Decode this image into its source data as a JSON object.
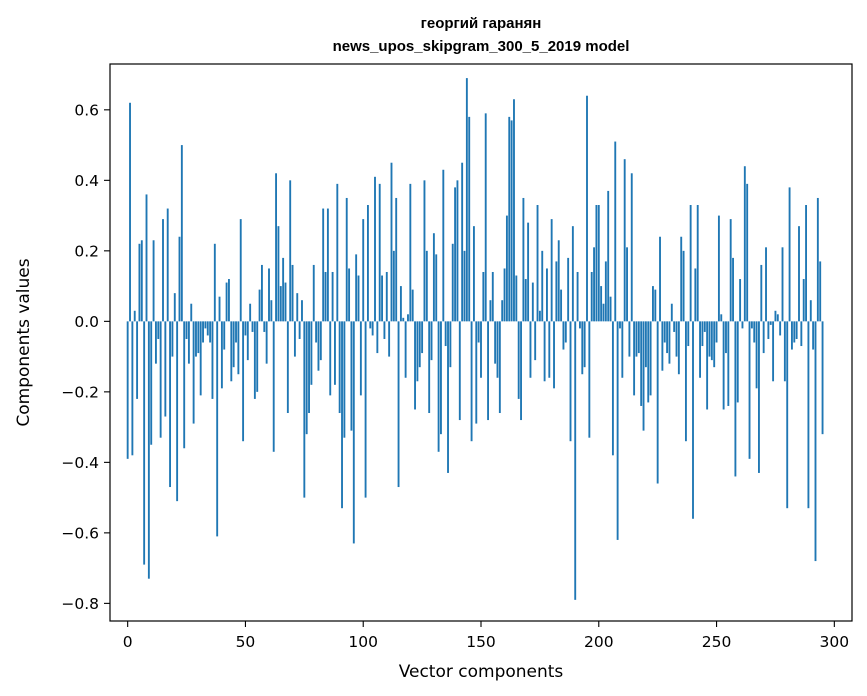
{
  "chart_data": {
    "type": "bar",
    "title": "георгий гаранян",
    "subtitle": "news_upos_skipgram_300_5_2019 model",
    "xlabel": "Vector components",
    "ylabel": "Components values",
    "xlim": [
      -7.5,
      307.5
    ],
    "ylim": [
      -0.85,
      0.73
    ],
    "xticks": [
      0,
      50,
      100,
      150,
      200,
      250,
      300
    ],
    "yticks": [
      -0.8,
      -0.6,
      -0.4,
      -0.2,
      0.0,
      0.2,
      0.4,
      0.6
    ],
    "xtick_labels": [
      "0",
      "50",
      "100",
      "150",
      "200",
      "250",
      "300"
    ],
    "ytick_labels": [
      "−0.8",
      "−0.6",
      "−0.4",
      "−0.2",
      "0.0",
      "0.2",
      "0.4",
      "0.6"
    ],
    "bar_color": "#1f77b4",
    "grid": false,
    "values": [
      -0.39,
      0.62,
      -0.38,
      0.03,
      -0.22,
      0.22,
      0.23,
      -0.69,
      0.36,
      -0.73,
      -0.35,
      0.23,
      -0.12,
      -0.05,
      -0.33,
      0.29,
      -0.27,
      0.32,
      -0.47,
      -0.1,
      0.08,
      -0.51,
      0.24,
      0.5,
      -0.36,
      -0.05,
      -0.12,
      0.05,
      -0.29,
      -0.1,
      -0.09,
      -0.21,
      -0.06,
      -0.02,
      -0.04,
      -0.06,
      -0.22,
      0.22,
      -0.61,
      0.07,
      -0.19,
      -0.08,
      0.11,
      0.12,
      -0.17,
      -0.13,
      -0.06,
      -0.15,
      0.29,
      -0.34,
      -0.04,
      -0.11,
      0.05,
      -0.03,
      -0.22,
      -0.2,
      0.09,
      0.16,
      -0.03,
      -0.12,
      0.15,
      0.06,
      -0.37,
      0.42,
      0.27,
      0.1,
      0.18,
      0.11,
      -0.26,
      0.4,
      0.16,
      -0.1,
      0.08,
      -0.05,
      0.06,
      -0.5,
      -0.32,
      -0.26,
      -0.18,
      0.16,
      -0.06,
      -0.14,
      -0.11,
      0.32,
      0.14,
      0.32,
      -0.21,
      0.14,
      -0.18,
      0.39,
      -0.26,
      -0.53,
      -0.33,
      0.35,
      0.15,
      -0.31,
      -0.63,
      0.19,
      0.13,
      -0.21,
      0.29,
      -0.5,
      0.33,
      -0.02,
      -0.04,
      0.41,
      -0.09,
      0.39,
      0.13,
      -0.05,
      0.14,
      -0.1,
      0.45,
      0.2,
      0.35,
      -0.47,
      0.1,
      0.01,
      -0.16,
      0.02,
      0.39,
      0.09,
      -0.25,
      -0.17,
      -0.13,
      -0.09,
      0.4,
      0.2,
      -0.26,
      -0.11,
      0.25,
      0.19,
      -0.37,
      -0.32,
      0.43,
      -0.07,
      -0.43,
      -0.13,
      0.22,
      0.38,
      0.4,
      -0.28,
      0.45,
      0.2,
      0.69,
      0.58,
      -0.34,
      0.27,
      -0.29,
      -0.06,
      -0.16,
      0.14,
      0.59,
      -0.28,
      0.06,
      0.14,
      -0.12,
      -0.16,
      -0.26,
      0.06,
      0.15,
      0.3,
      0.58,
      0.57,
      0.63,
      0.13,
      -0.22,
      -0.28,
      0.35,
      0.12,
      0.28,
      -0.16,
      0.11,
      -0.11,
      0.33,
      0.03,
      0.2,
      -0.17,
      0.15,
      -0.16,
      0.29,
      -0.19,
      0.17,
      0.23,
      0.09,
      -0.08,
      -0.06,
      0.18,
      -0.34,
      0.27,
      -0.79,
      0.14,
      -0.02,
      -0.15,
      -0.13,
      0.64,
      -0.33,
      0.14,
      0.21,
      0.33,
      0.33,
      0.1,
      0.05,
      0.17,
      0.37,
      0.07,
      -0.38,
      0.51,
      -0.62,
      -0.02,
      -0.16,
      0.46,
      0.21,
      -0.1,
      0.42,
      -0.21,
      -0.1,
      -0.09,
      -0.24,
      -0.31,
      -0.13,
      -0.23,
      -0.21,
      0.1,
      0.09,
      -0.46,
      0.24,
      -0.14,
      -0.06,
      -0.09,
      -0.12,
      0.05,
      -0.03,
      -0.1,
      -0.15,
      0.24,
      0.2,
      -0.34,
      -0.07,
      0.33,
      -0.56,
      0.15,
      0.33,
      -0.16,
      -0.07,
      -0.03,
      -0.25,
      -0.1,
      -0.11,
      -0.13,
      -0.06,
      0.3,
      0.02,
      -0.25,
      -0.09,
      -0.24,
      0.29,
      0.18,
      -0.44,
      -0.23,
      0.12,
      -0.02,
      0.44,
      0.39,
      -0.39,
      -0.02,
      -0.06,
      -0.19,
      -0.43,
      0.16,
      -0.09,
      0.21,
      -0.05,
      -0.01,
      -0.17,
      0.03,
      0.02,
      -0.04,
      0.21,
      -0.17,
      -0.53,
      0.38,
      -0.08,
      -0.06,
      -0.05,
      0.27,
      -0.07,
      0.12,
      0.33,
      -0.53,
      0.06,
      -0.08,
      -0.68,
      0.35,
      0.17,
      -0.32
    ]
  }
}
